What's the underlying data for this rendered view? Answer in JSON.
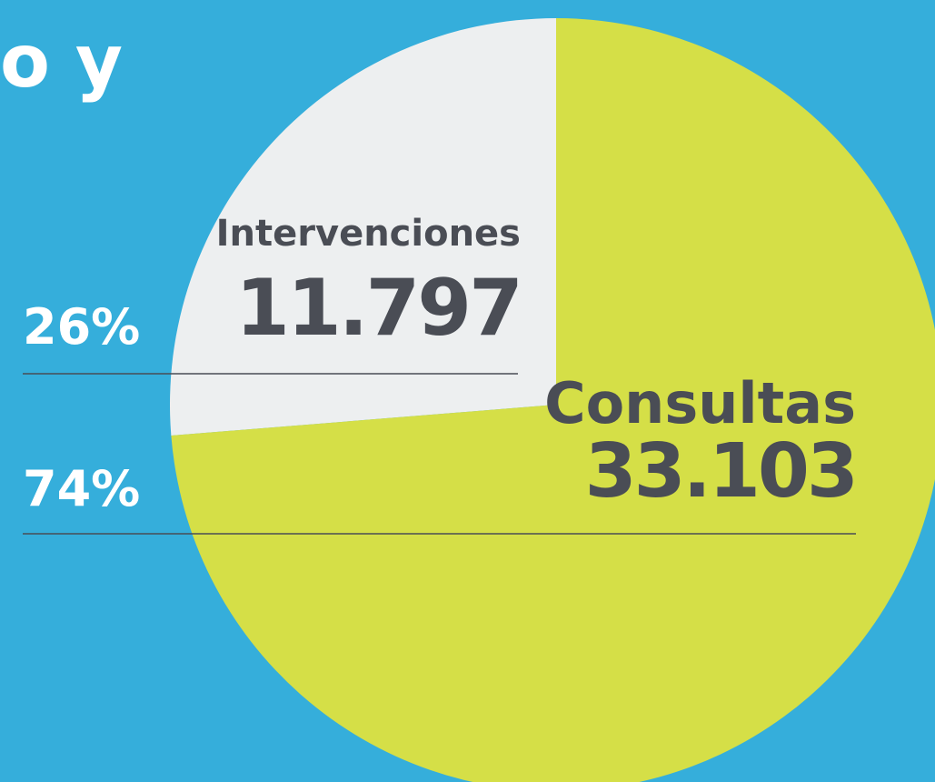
{
  "chart_data": {
    "type": "pie",
    "title": "vo y",
    "categories": [
      "Intervenciones",
      "Consultas"
    ],
    "values": [
      11797,
      33103
    ],
    "value_labels": [
      "11.797",
      "33.103"
    ],
    "percentages": [
      {
        "value": 26,
        "label": "26%"
      },
      {
        "value": 74,
        "label": "74%"
      }
    ],
    "colors": [
      "#edeff0",
      "#d5df47"
    ]
  }
}
